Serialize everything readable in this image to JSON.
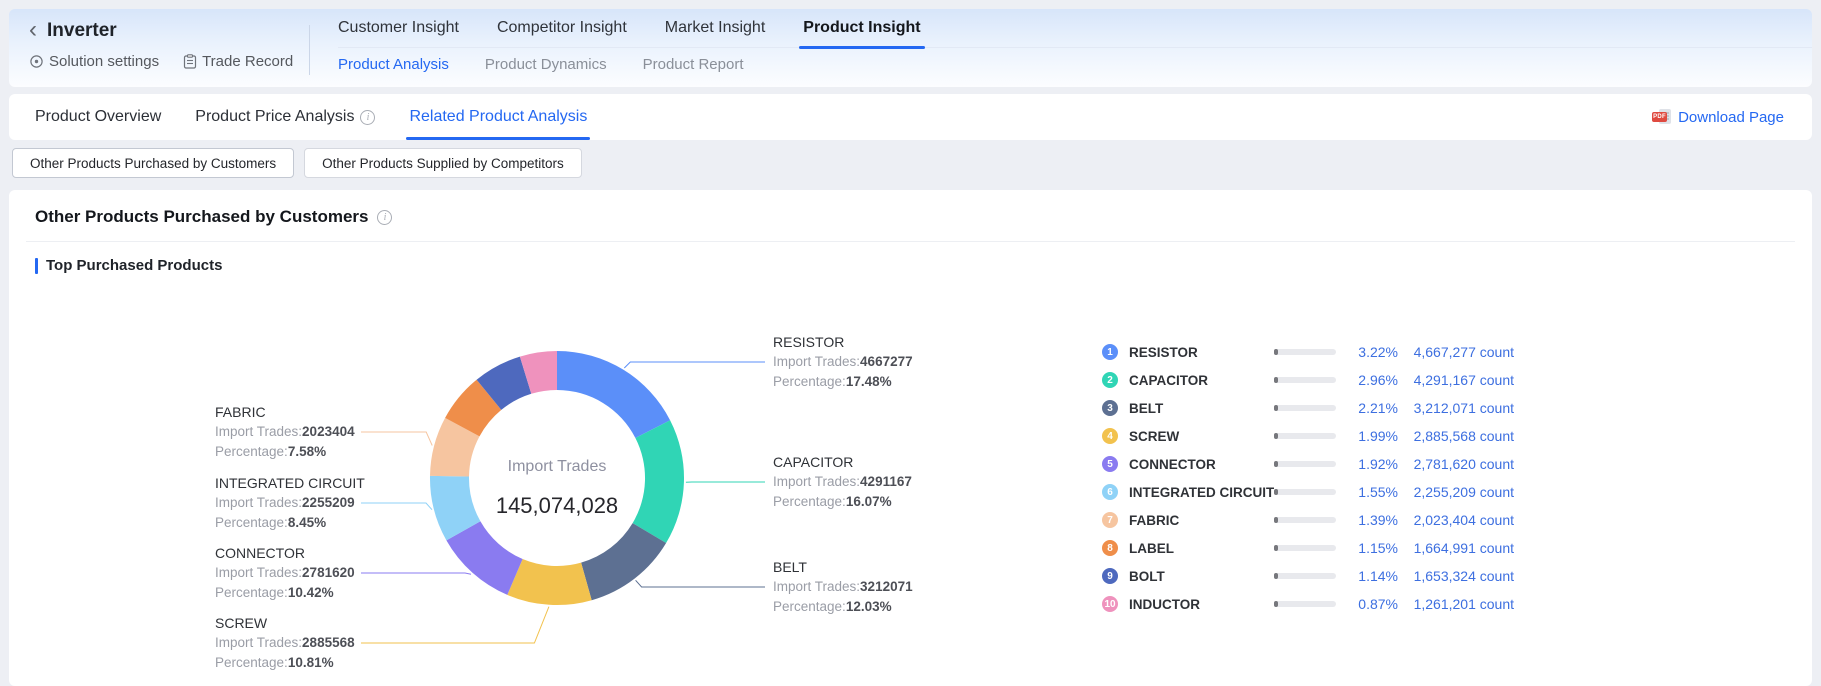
{
  "colors": {
    "accent": "#2468F2",
    "legend_value": "#3D6FE0",
    "page_background": "#EDEFF4",
    "pdf_red": "#DF4A40"
  },
  "header": {
    "title": "Inverter",
    "actions": [
      {
        "label": "Solution settings"
      },
      {
        "label": "Trade Record"
      }
    ],
    "tabs": [
      "Customer Insight",
      "Competitor Insight",
      "Market Insight",
      "Product Insight"
    ],
    "active_tab": "Product Insight",
    "subtabs": [
      "Product Analysis",
      "Product Dynamics",
      "Product Report"
    ],
    "active_subtab": "Product Analysis"
  },
  "nav": {
    "items": [
      {
        "label": "Product Overview",
        "info": false
      },
      {
        "label": "Product Price Analysis",
        "info": true
      },
      {
        "label": "Related Product Analysis",
        "info": false
      }
    ],
    "active": "Related Product Analysis",
    "download_label": "Download Page",
    "pdf_badge": "PDF"
  },
  "toggles": [
    "Other Products Purchased by Customers",
    "Other Products Supplied by Competitors"
  ],
  "active_toggle": "Other Products Purchased by Customers",
  "section": {
    "title": "Other Products Purchased by Customers",
    "subtitle": "Top Purchased Products"
  },
  "chart_data": {
    "type": "pie",
    "title": "Top Purchased Products",
    "center_label": "Import Trades",
    "center_value": "145,074,028",
    "unit": "count",
    "legend_position": "right",
    "label_prefixes": {
      "trades": "Import Trades:",
      "percentage": "Percentage:"
    },
    "series": [
      {
        "name": "RESISTOR",
        "import_trades": 4667277,
        "percentage": "17.48%",
        "share_of_total": "3.22%",
        "count_display": "4,667,277",
        "color": "#5B8FF9"
      },
      {
        "name": "CAPACITOR",
        "import_trades": 4291167,
        "percentage": "16.07%",
        "share_of_total": "2.96%",
        "count_display": "4,291,167",
        "color": "#30D5B5"
      },
      {
        "name": "BELT",
        "import_trades": 3212071,
        "percentage": "12.03%",
        "share_of_total": "2.21%",
        "count_display": "3,212,071",
        "color": "#5D7092"
      },
      {
        "name": "SCREW",
        "import_trades": 2885568,
        "percentage": "10.81%",
        "share_of_total": "1.99%",
        "count_display": "2,885,568",
        "color": "#F2C24E"
      },
      {
        "name": "CONNECTOR",
        "import_trades": 2781620,
        "percentage": "10.42%",
        "share_of_total": "1.92%",
        "count_display": "2,781,620",
        "color": "#8A7BF0"
      },
      {
        "name": "INTEGRATED CIRCUIT",
        "import_trades": 2255209,
        "percentage": "8.45%",
        "share_of_total": "1.55%",
        "count_display": "2,255,209",
        "color": "#8FD2F7"
      },
      {
        "name": "FABRIC",
        "import_trades": 2023404,
        "percentage": "7.58%",
        "share_of_total": "1.39%",
        "count_display": "2,023,404",
        "color": "#F6C5A0"
      },
      {
        "name": "LABEL",
        "import_trades": 1664991,
        "share_of_total": "1.15%",
        "count_display": "1,664,991",
        "color": "#EF8E4A"
      },
      {
        "name": "BOLT",
        "import_trades": 1653324,
        "share_of_total": "1.14%",
        "count_display": "1,653,324",
        "color": "#4E69BE"
      },
      {
        "name": "INDUCTOR",
        "import_trades": 1261201,
        "share_of_total": "0.87%",
        "count_display": "1,261,201",
        "color": "#EF92BD"
      }
    ]
  }
}
